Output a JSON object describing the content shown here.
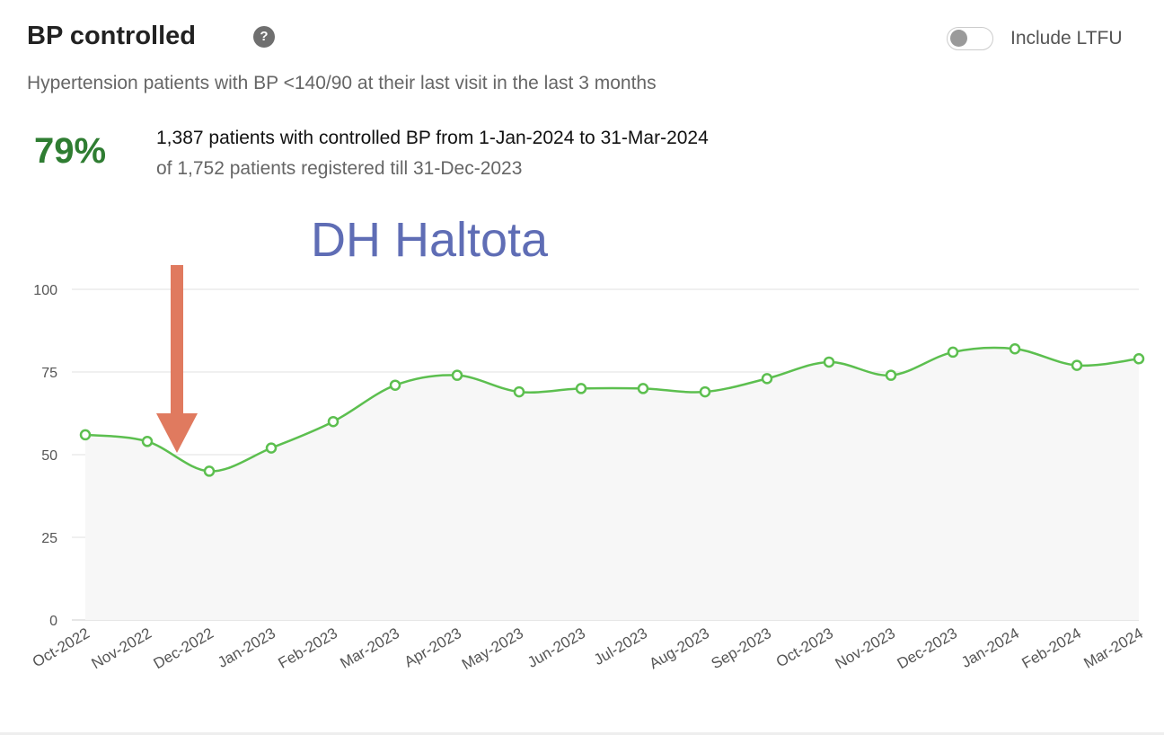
{
  "header": {
    "title": "BP controlled",
    "help_icon": "?",
    "toggle_label": "Include LTFU",
    "toggle_on": false,
    "subtitle": "Hypertension patients with BP <140/90 at their last visit in the last 3 months"
  },
  "summary": {
    "percent": "79%",
    "line1": "1,387 patients with controlled BP from 1-Jan-2024 to 31-Mar-2024",
    "line2": "of 1,752 patients registered till 31-Dec-2023"
  },
  "annotation": {
    "label": "DH Haltota",
    "arrow_at": "Nov-2022",
    "arrow_color": "#e07a5f",
    "label_color": "#5f6db5"
  },
  "chart_data": {
    "type": "line",
    "title": "BP controlled",
    "xlabel": "",
    "ylabel": "",
    "ylim": [
      0,
      100
    ],
    "yticks": [
      0,
      25,
      50,
      75,
      100
    ],
    "grid": true,
    "categories": [
      "Oct-2022",
      "Nov-2022",
      "Dec-2022",
      "Jan-2023",
      "Feb-2023",
      "Mar-2023",
      "Apr-2023",
      "May-2023",
      "Jun-2023",
      "Jul-2023",
      "Aug-2023",
      "Sep-2023",
      "Oct-2023",
      "Nov-2023",
      "Dec-2023",
      "Jan-2024",
      "Feb-2024",
      "Mar-2024"
    ],
    "series": [
      {
        "name": "BP controlled",
        "color": "#5cbf4f",
        "values": [
          56,
          54,
          45,
          52,
          60,
          71,
          74,
          69,
          70,
          70,
          69,
          73,
          78,
          74,
          81,
          82,
          77,
          79
        ]
      }
    ]
  }
}
